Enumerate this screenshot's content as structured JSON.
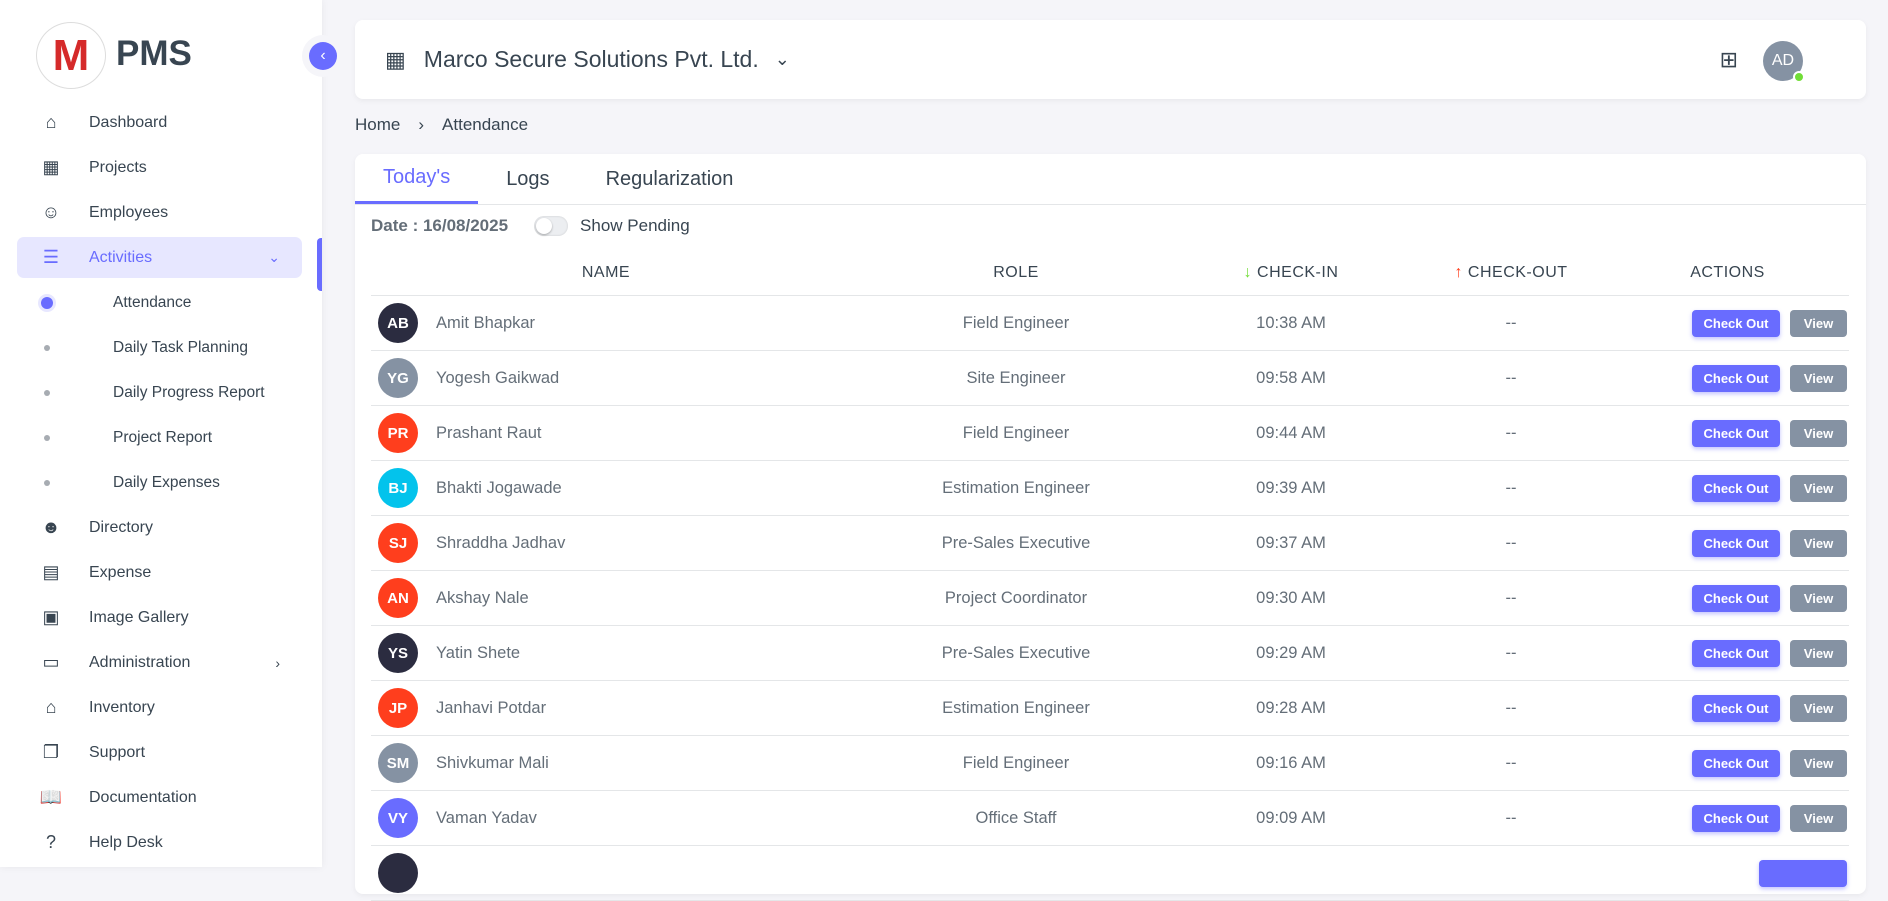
{
  "brand": {
    "name": "PMS",
    "logo_letter": "M"
  },
  "sidebar": {
    "items": [
      {
        "label": "Dashboard",
        "icon": "home-icon",
        "glyph": "⌂"
      },
      {
        "label": "Projects",
        "icon": "building-icon",
        "glyph": "▦"
      },
      {
        "label": "Employees",
        "icon": "user-icon",
        "glyph": "☺"
      },
      {
        "label": "Activities",
        "icon": "list-icon",
        "glyph": "☰",
        "active": true,
        "expanded": true
      },
      {
        "label": "Directory",
        "icon": "users-icon",
        "glyph": "☻"
      },
      {
        "label": "Expense",
        "icon": "receipt-icon",
        "glyph": "▤"
      },
      {
        "label": "Image Gallery",
        "icon": "gallery-icon",
        "glyph": "▣"
      },
      {
        "label": "Administration",
        "icon": "archive-icon",
        "glyph": "▭"
      },
      {
        "label": "Inventory",
        "icon": "store-icon",
        "glyph": "⌂"
      },
      {
        "label": "Support",
        "icon": "copy-icon",
        "glyph": "❐"
      },
      {
        "label": "Documentation",
        "icon": "book-icon",
        "glyph": "📖"
      },
      {
        "label": "Help Desk",
        "icon": "question-icon",
        "glyph": "?"
      }
    ],
    "subitems": [
      {
        "label": "Attendance",
        "active": true
      },
      {
        "label": "Daily Task Planning"
      },
      {
        "label": "Daily Progress Report"
      },
      {
        "label": "Project Report"
      },
      {
        "label": "Daily Expenses"
      }
    ]
  },
  "header": {
    "company": "Marco Secure Solutions Pvt. Ltd.",
    "avatar": "AD",
    "status_color": "#71dd37"
  },
  "breadcrumb": [
    "Home",
    "Attendance"
  ],
  "tabs": [
    "Today's",
    "Logs",
    "Regularization"
  ],
  "filters": {
    "date": "Date : 16/08/2025",
    "toggle_label": "Show Pending",
    "toggle_on": false
  },
  "table": {
    "columns": [
      "NAME",
      "ROLE",
      "CHECK-IN",
      "CHECK-OUT",
      "ACTIONS"
    ],
    "checkout_label": "Check Out",
    "view_label": "View",
    "rows": [
      {
        "initials": "AB",
        "name": "Amit Bhapkar",
        "role": "Field Engineer",
        "in": "10:38 AM",
        "out": "--",
        "color": "#2b2c40"
      },
      {
        "initials": "YG",
        "name": "Yogesh Gaikwad",
        "role": "Site Engineer",
        "in": "09:58 AM",
        "out": "--",
        "color": "#8592a3"
      },
      {
        "initials": "PR",
        "name": "Prashant Raut",
        "role": "Field Engineer",
        "in": "09:44 AM",
        "out": "--",
        "color": "#ff3e1d"
      },
      {
        "initials": "BJ",
        "name": "Bhakti Jogawade",
        "role": "Estimation Engineer",
        "in": "09:39 AM",
        "out": "--",
        "color": "#03c3ec"
      },
      {
        "initials": "SJ",
        "name": "Shraddha Jadhav",
        "role": "Pre-Sales Executive",
        "in": "09:37 AM",
        "out": "--",
        "color": "#ff3e1d"
      },
      {
        "initials": "AN",
        "name": "Akshay Nale",
        "role": "Project Coordinator",
        "in": "09:30 AM",
        "out": "--",
        "color": "#ff3e1d"
      },
      {
        "initials": "YS",
        "name": "Yatin Shete",
        "role": "Pre-Sales Executive",
        "in": "09:29 AM",
        "out": "--",
        "color": "#2b2c40"
      },
      {
        "initials": "JP",
        "name": "Janhavi Potdar",
        "role": "Estimation Engineer",
        "in": "09:28 AM",
        "out": "--",
        "color": "#ff3e1d"
      },
      {
        "initials": "SM",
        "name": "Shivkumar Mali",
        "role": "Field Engineer",
        "in": "09:16 AM",
        "out": "--",
        "color": "#8592a3"
      },
      {
        "initials": "VY",
        "name": "Vaman Yadav",
        "role": "Office Staff",
        "in": "09:09 AM",
        "out": "--",
        "color": "#696cff"
      }
    ]
  }
}
